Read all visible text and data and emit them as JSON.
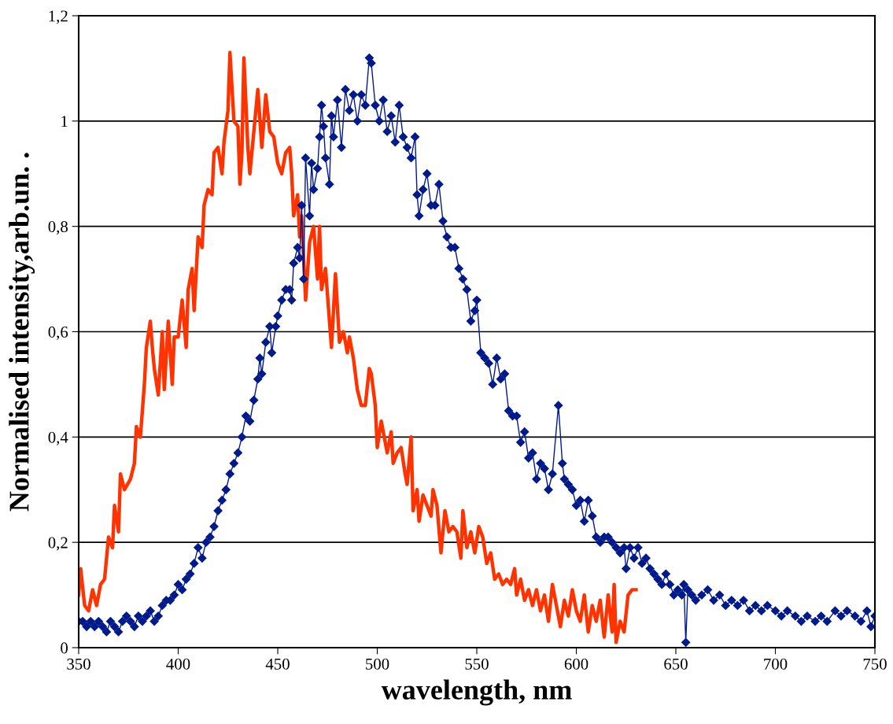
{
  "chart_data": {
    "type": "line",
    "xlabel": "wavelength, nm",
    "ylabel": "Normalised intensity,arb.un. .",
    "xlim": [
      350,
      750
    ],
    "xticks": [
      350,
      400,
      450,
      500,
      550,
      600,
      650,
      700,
      750
    ],
    "ylim": [
      0,
      1.2
    ],
    "yticks": [
      {
        "value": 0,
        "label": "0"
      },
      {
        "value": 0.2,
        "label": "0,2"
      },
      {
        "value": 0.4,
        "label": "0,4"
      },
      {
        "value": 0.6,
        "label": "0,6"
      },
      {
        "value": 0.8,
        "label": "0,8"
      },
      {
        "value": 1,
        "label": "1"
      },
      {
        "value": 1.2,
        "label": "1,2"
      }
    ],
    "grid": "y",
    "series": [
      {
        "color": "#ff3300",
        "marker": "none",
        "x": [
          350,
          351,
          353,
          355,
          357,
          359,
          361,
          363,
          365,
          367,
          368,
          370,
          371,
          373,
          376,
          378,
          379,
          381,
          383,
          384,
          386,
          387,
          388,
          390,
          392,
          393,
          395,
          397,
          398,
          400,
          402,
          404,
          405,
          407,
          408,
          410,
          412,
          413,
          415,
          417,
          418,
          420,
          422,
          423,
          425,
          426,
          428,
          430,
          431,
          432,
          433,
          435,
          436,
          440,
          442,
          444,
          446,
          448,
          450,
          452,
          454,
          456,
          457,
          458,
          460,
          461,
          462,
          464,
          466,
          468,
          470,
          471,
          472,
          474,
          476,
          477,
          479,
          481,
          483,
          485,
          486,
          488,
          490,
          492,
          494,
          496,
          497,
          499,
          500,
          502,
          503,
          505,
          507,
          508,
          510,
          512,
          514,
          515,
          517,
          518,
          520,
          521,
          523,
          525,
          527,
          528,
          530,
          532,
          534,
          536,
          538,
          540,
          542,
          543,
          545,
          547,
          549,
          551,
          553,
          555,
          557,
          559,
          561,
          563,
          565,
          567,
          569,
          570,
          572,
          574,
          576,
          578,
          580,
          582,
          584,
          586,
          588,
          590,
          592,
          594,
          596,
          598,
          600,
          602,
          604,
          606,
          608,
          610,
          612,
          614,
          616,
          618,
          619,
          620,
          622,
          624,
          626,
          628,
          630
        ],
        "values": [
          0.1,
          0.15,
          0.08,
          0.07,
          0.11,
          0.08,
          0.12,
          0.13,
          0.21,
          0.19,
          0.27,
          0.22,
          0.33,
          0.3,
          0.32,
          0.35,
          0.42,
          0.4,
          0.5,
          0.57,
          0.62,
          0.57,
          0.53,
          0.48,
          0.6,
          0.49,
          0.62,
          0.5,
          0.59,
          0.59,
          0.66,
          0.57,
          0.68,
          0.72,
          0.64,
          0.78,
          0.76,
          0.84,
          0.87,
          0.86,
          0.94,
          0.95,
          0.9,
          0.96,
          1.02,
          1.13,
          1.0,
          0.99,
          0.88,
          0.94,
          1.12,
          0.95,
          0.9,
          1.06,
          0.95,
          1.05,
          0.98,
          0.97,
          0.92,
          0.9,
          0.94,
          0.95,
          0.9,
          0.82,
          0.86,
          0.78,
          0.82,
          0.66,
          0.77,
          0.8,
          0.7,
          0.8,
          0.68,
          0.72,
          0.62,
          0.57,
          0.71,
          0.58,
          0.6,
          0.56,
          0.59,
          0.55,
          0.49,
          0.46,
          0.46,
          0.53,
          0.52,
          0.46,
          0.38,
          0.43,
          0.41,
          0.37,
          0.41,
          0.35,
          0.37,
          0.38,
          0.33,
          0.31,
          0.4,
          0.26,
          0.3,
          0.24,
          0.29,
          0.27,
          0.25,
          0.3,
          0.27,
          0.18,
          0.26,
          0.22,
          0.23,
          0.22,
          0.17,
          0.26,
          0.19,
          0.22,
          0.18,
          0.23,
          0.21,
          0.16,
          0.18,
          0.13,
          0.14,
          0.12,
          0.13,
          0.12,
          0.15,
          0.1,
          0.13,
          0.09,
          0.11,
          0.08,
          0.11,
          0.07,
          0.1,
          0.05,
          0.12,
          0.08,
          0.04,
          0.09,
          0.06,
          0.11,
          0.07,
          0.05,
          0.1,
          0.03,
          0.08,
          0.05,
          0.09,
          0.02,
          0.1,
          0.03,
          0.12,
          0.01,
          0.05,
          0.03,
          0.1,
          0.11,
          0.11
        ]
      },
      {
        "color": "#001a8c",
        "marker": "diamond",
        "x": [
          350,
          352,
          354,
          356,
          358,
          360,
          362,
          364,
          366,
          368,
          370,
          372,
          374,
          376,
          378,
          380,
          382,
          384,
          386,
          388,
          390,
          392,
          394,
          396,
          398,
          400,
          402,
          404,
          406,
          408,
          410,
          412,
          414,
          416,
          418,
          420,
          422,
          424,
          426,
          428,
          430,
          432,
          434,
          436,
          438,
          440,
          441,
          442,
          444,
          446,
          447,
          449,
          450,
          452,
          454,
          456,
          457,
          458,
          460,
          461,
          462,
          463,
          464,
          466,
          467,
          468,
          470,
          471,
          472,
          473,
          474,
          476,
          477,
          478,
          480,
          482,
          484,
          486,
          488,
          490,
          492,
          494,
          496,
          497,
          499,
          501,
          503,
          505,
          507,
          509,
          511,
          513,
          515,
          517,
          519,
          520,
          521,
          523,
          525,
          527,
          529,
          531,
          533,
          535,
          537,
          539,
          541,
          543,
          545,
          547,
          549,
          550,
          552,
          554,
          556,
          558,
          560,
          562,
          564,
          566,
          568,
          570,
          572,
          574,
          576,
          578,
          580,
          582,
          584,
          586,
          588,
          591,
          593,
          594,
          596,
          598,
          600,
          602,
          604,
          606,
          608,
          610,
          612,
          614,
          616,
          618,
          620,
          622,
          624,
          625,
          627,
          629,
          631,
          633,
          635,
          637,
          639,
          641,
          643,
          645,
          647,
          649,
          651,
          653,
          654,
          655,
          656,
          658,
          660,
          663,
          666,
          669,
          672,
          675,
          678,
          681,
          684,
          687,
          690,
          693,
          696,
          700,
          703,
          706,
          710,
          713,
          716,
          720,
          723,
          726,
          730,
          733,
          736,
          740,
          743,
          746,
          748,
          750
        ],
        "values": [
          0.05,
          0.05,
          0.04,
          0.05,
          0.04,
          0.05,
          0.04,
          0.03,
          0.05,
          0.04,
          0.03,
          0.05,
          0.06,
          0.05,
          0.04,
          0.06,
          0.05,
          0.06,
          0.07,
          0.05,
          0.06,
          0.08,
          0.09,
          0.09,
          0.1,
          0.12,
          0.11,
          0.13,
          0.14,
          0.16,
          0.19,
          0.17,
          0.2,
          0.21,
          0.23,
          0.26,
          0.28,
          0.3,
          0.33,
          0.35,
          0.37,
          0.4,
          0.44,
          0.43,
          0.47,
          0.51,
          0.55,
          0.52,
          0.58,
          0.61,
          0.56,
          0.61,
          0.63,
          0.66,
          0.68,
          0.68,
          0.66,
          0.73,
          0.76,
          0.74,
          0.84,
          0.7,
          0.93,
          0.82,
          0.92,
          0.87,
          0.91,
          0.97,
          1.03,
          0.99,
          0.93,
          0.88,
          1.01,
          0.97,
          1.04,
          0.95,
          1.06,
          1.02,
          1.05,
          1.0,
          1.05,
          1.03,
          1.12,
          1.11,
          1.03,
          1.0,
          1.04,
          0.98,
          1.01,
          0.96,
          1.03,
          0.97,
          0.95,
          0.93,
          0.97,
          0.86,
          0.82,
          0.87,
          0.9,
          0.84,
          0.84,
          0.88,
          0.81,
          0.78,
          0.76,
          0.76,
          0.72,
          0.7,
          0.68,
          0.62,
          0.64,
          0.66,
          0.56,
          0.55,
          0.54,
          0.5,
          0.55,
          0.51,
          0.52,
          0.45,
          0.44,
          0.44,
          0.39,
          0.41,
          0.36,
          0.37,
          0.32,
          0.35,
          0.34,
          0.3,
          0.33,
          0.46,
          0.35,
          0.32,
          0.31,
          0.3,
          0.27,
          0.28,
          0.24,
          0.28,
          0.25,
          0.21,
          0.2,
          0.21,
          0.21,
          0.2,
          0.19,
          0.18,
          0.19,
          0.15,
          0.19,
          0.17,
          0.19,
          0.16,
          0.17,
          0.15,
          0.14,
          0.13,
          0.12,
          0.14,
          0.12,
          0.1,
          0.11,
          0.1,
          0.12,
          0.01,
          0.11,
          0.1,
          0.09,
          0.1,
          0.11,
          0.09,
          0.1,
          0.08,
          0.09,
          0.08,
          0.09,
          0.07,
          0.08,
          0.07,
          0.08,
          0.07,
          0.06,
          0.07,
          0.06,
          0.05,
          0.06,
          0.05,
          0.06,
          0.05,
          0.07,
          0.06,
          0.07,
          0.06,
          0.05,
          0.07,
          0.04,
          0.06
        ]
      }
    ]
  }
}
